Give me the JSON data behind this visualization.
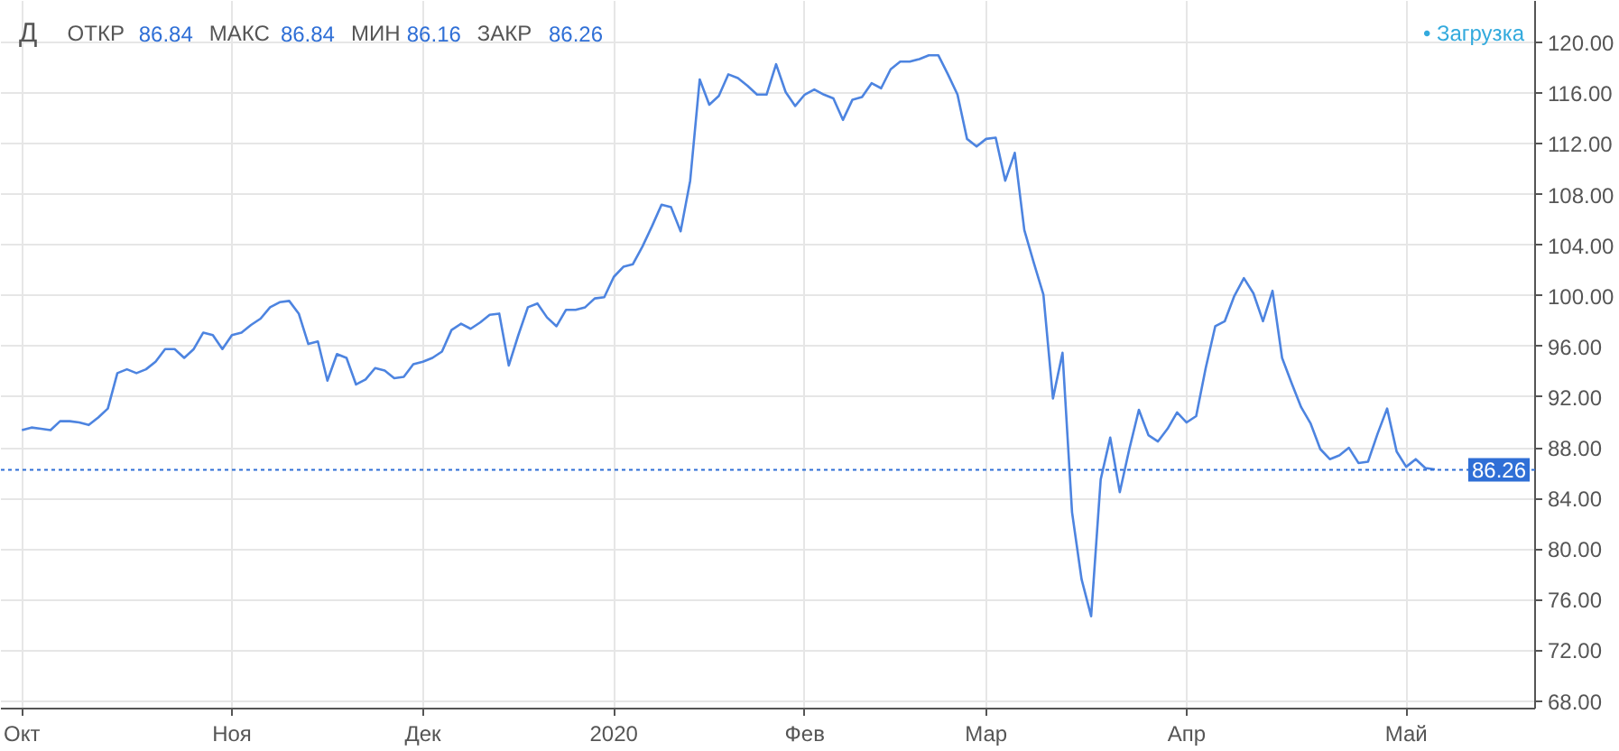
{
  "chart_data": {
    "type": "line",
    "title": "Д",
    "annotations": [
      "ОТКР 86.84",
      "МАКС 86.84",
      "МИН 86.16",
      "ЗАКР 86.26",
      "• Загрузка"
    ],
    "categories": [
      "Окт",
      null,
      null,
      null,
      null,
      null,
      null,
      null,
      null,
      null,
      null,
      null,
      null,
      null,
      null,
      null,
      null,
      null,
      null,
      null,
      null,
      null,
      "Ноя",
      null,
      null,
      null,
      null,
      null,
      null,
      null,
      null,
      null,
      null,
      null,
      null,
      null,
      null,
      null,
      null,
      null,
      null,
      null,
      "Дек",
      null,
      null,
      null,
      null,
      null,
      null,
      null,
      null,
      null,
      null,
      null,
      null,
      null,
      null,
      null,
      null,
      null,
      null,
      null,
      "2020",
      null,
      null,
      null,
      null,
      null,
      null,
      null,
      null,
      null,
      null,
      null,
      null,
      null,
      null,
      null,
      null,
      null,
      null,
      null,
      "Фев",
      null,
      null,
      null,
      null,
      null,
      null,
      null,
      null,
      null,
      null,
      null,
      null,
      null,
      null,
      null,
      null,
      null,
      null,
      "Мар",
      null,
      null,
      null,
      null,
      null,
      null,
      null,
      null,
      null,
      null,
      null,
      null,
      null,
      null,
      null,
      null,
      null,
      null,
      null,
      null,
      "Апр",
      null,
      null,
      null,
      null,
      null,
      null,
      null,
      null,
      null,
      null,
      null,
      null,
      null,
      null,
      null,
      null,
      null,
      null,
      null,
      null,
      null,
      null,
      "Май",
      null,
      null,
      null,
      null,
      null,
      null,
      null,
      null,
      null,
      null,
      null,
      null,
      null
    ],
    "series": [
      {
        "color": "#4d84e0",
        "values": [
          89.4,
          89.6,
          89.5,
          89.4,
          90.1,
          90.1,
          90.0,
          89.8,
          90.4,
          91.1,
          93.9,
          94.2,
          93.9,
          94.2,
          94.8,
          95.8,
          95.8,
          95.1,
          95.8,
          97.1,
          96.9,
          95.8,
          96.9,
          97.1,
          97.7,
          98.2,
          99.1,
          99.5,
          99.6,
          98.6,
          96.2,
          96.4,
          93.3,
          95.4,
          95.1,
          93.0,
          93.4,
          94.3,
          94.1,
          93.5,
          93.6,
          94.6,
          94.8,
          95.1,
          95.6,
          97.3,
          97.8,
          97.4,
          97.9,
          98.5,
          98.6,
          94.5,
          96.9,
          99.1,
          99.4,
          98.3,
          97.6,
          98.9,
          98.9,
          99.1,
          99.8,
          99.9,
          101.5,
          102.3,
          102.5,
          103.9,
          105.5,
          107.2,
          107.0,
          105.1,
          109.1,
          117.1,
          115.1,
          115.8,
          117.5,
          117.2,
          116.6,
          115.9,
          115.9,
          118.3,
          116.1,
          115.0,
          115.9,
          116.3,
          115.9,
          115.6,
          113.9,
          115.5,
          115.7,
          116.8,
          116.4,
          117.9,
          118.5,
          118.5,
          118.7,
          119.0,
          119.0,
          117.5,
          115.9,
          112.4,
          111.8,
          112.4,
          112.5,
          109.1,
          111.3,
          105.2,
          102.6,
          100.1,
          91.9,
          95.5,
          82.9,
          77.6,
          74.7,
          85.5,
          88.8,
          84.5,
          87.9,
          91.0,
          89.0,
          88.5,
          89.5,
          90.8,
          90.0,
          90.5,
          94.3,
          97.6,
          98.0,
          100.0,
          101.4,
          100.2,
          98.0,
          100.4,
          95.1,
          93.1,
          91.2,
          89.9,
          87.9,
          87.1,
          87.4,
          88.0,
          86.8,
          86.9,
          89.1,
          91.1,
          87.7,
          86.5,
          87.1,
          86.4,
          86.3,
          null,
          null,
          null,
          null,
          null,
          null,
          null,
          null,
          null,
          null
        ]
      }
    ],
    "ylim": [
      67.4,
      123.3
    ],
    "yticks": [
      {
        "value": 68,
        "label": "68.00"
      },
      {
        "value": 72,
        "label": "72.00"
      },
      {
        "value": 76,
        "label": "76.00"
      },
      {
        "value": 80,
        "label": "80.00"
      },
      {
        "value": 84,
        "label": "84.00"
      },
      {
        "value": 88,
        "label": "88.00"
      },
      {
        "value": 92,
        "label": "92.00"
      },
      {
        "value": 96,
        "label": "96.00"
      },
      {
        "value": 100,
        "label": "100.00"
      },
      {
        "value": 104,
        "label": "104.00"
      },
      {
        "value": 108,
        "label": "108.00"
      },
      {
        "value": 112,
        "label": "112.00"
      },
      {
        "value": 116,
        "label": "116.00"
      },
      {
        "value": 120,
        "label": "120.00"
      }
    ],
    "ref_lines": [
      {
        "axis": "y",
        "value": 86.26,
        "label": "86.26",
        "color": "#2f6fd6",
        "line_style": "dotted"
      }
    ],
    "grid": true
  }
}
